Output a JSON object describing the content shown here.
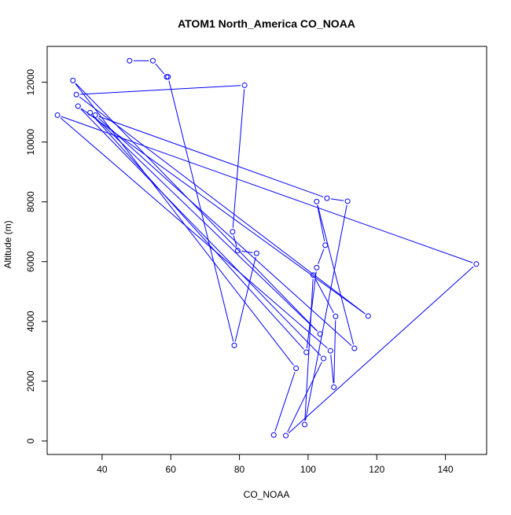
{
  "chart_data": {
    "type": "line",
    "title": "ATOM1 North_America CO_NOAA",
    "xlabel": "CO_NOAA",
    "ylabel": "Altitude (m)",
    "xlim": [
      24,
      152
    ],
    "ylim": [
      -450,
      13200
    ],
    "xticks": [
      40,
      60,
      80,
      100,
      120,
      140
    ],
    "yticks": [
      0,
      2000,
      4000,
      6000,
      8000,
      10000,
      12000
    ],
    "grid": false,
    "legend": "none",
    "series": [
      {
        "color": "#0000ff",
        "markers": "open-circle",
        "points": [
          {
            "x": 48.0,
            "y": 12720
          },
          {
            "x": 54.8,
            "y": 12720
          },
          {
            "x": 58.8,
            "y": 12180
          },
          {
            "x": 59.2,
            "y": 12180
          },
          {
            "x": 78.5,
            "y": 3200
          },
          {
            "x": 85.0,
            "y": 6280
          },
          {
            "x": 79.5,
            "y": 6370
          },
          {
            "x": 78.0,
            "y": 7000
          },
          {
            "x": 81.5,
            "y": 11900
          },
          {
            "x": 32.5,
            "y": 11590
          },
          {
            "x": 117.5,
            "y": 4180
          },
          {
            "x": 33.0,
            "y": 11200
          },
          {
            "x": 104.5,
            "y": 2760
          },
          {
            "x": 93.5,
            "y": 180
          },
          {
            "x": 149.0,
            "y": 5920
          },
          {
            "x": 27.0,
            "y": 10900
          },
          {
            "x": 106.5,
            "y": 3020
          },
          {
            "x": 107.5,
            "y": 1800
          },
          {
            "x": 108.0,
            "y": 4170
          },
          {
            "x": 101.5,
            "y": 5550
          },
          {
            "x": 99.0,
            "y": 550
          },
          {
            "x": 111.5,
            "y": 8020
          },
          {
            "x": 105.5,
            "y": 8120
          },
          {
            "x": 38.0,
            "y": 10900
          },
          {
            "x": 113.5,
            "y": 3100
          },
          {
            "x": 102.5,
            "y": 8010
          },
          {
            "x": 105.0,
            "y": 6550
          },
          {
            "x": 102.5,
            "y": 5800
          },
          {
            "x": 99.5,
            "y": 2970
          },
          {
            "x": 36.5,
            "y": 10980
          },
          {
            "x": 103.5,
            "y": 3580
          },
          {
            "x": 31.5,
            "y": 12060
          },
          {
            "x": 96.5,
            "y": 2430
          },
          {
            "x": 90.0,
            "y": 200
          }
        ]
      }
    ]
  }
}
